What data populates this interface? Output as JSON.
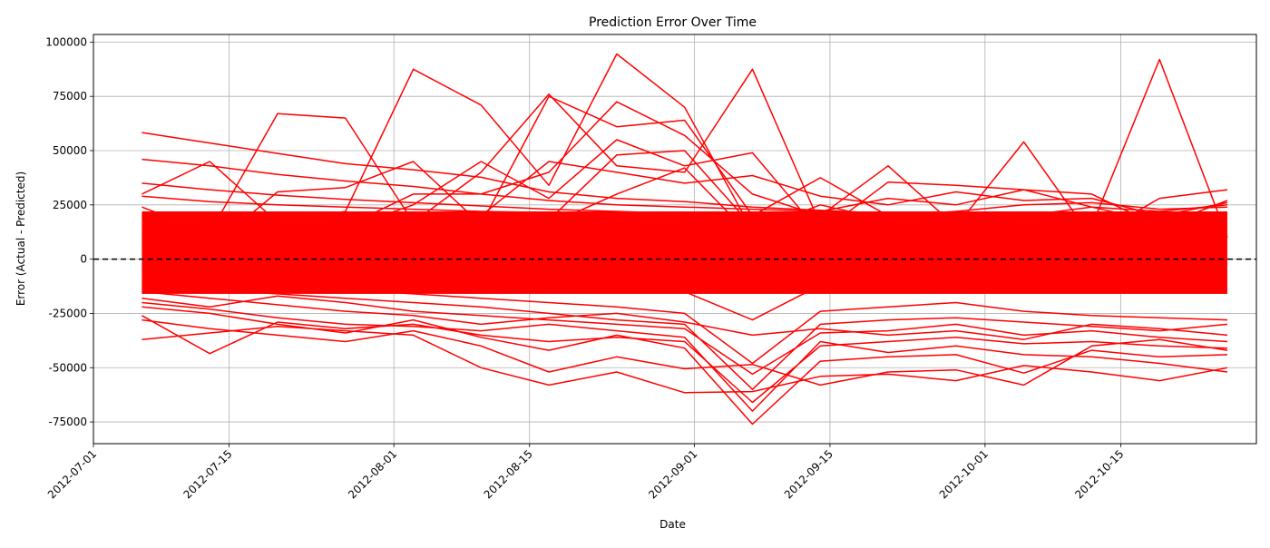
{
  "chart_data": {
    "type": "line",
    "title": "Prediction Error Over Time",
    "xlabel": "Date",
    "ylabel": "Error (Actual - Predicted)",
    "xlim": [
      "2012-07-01",
      "2012-10-29"
    ],
    "ylim": [
      -85000,
      103500
    ],
    "x_ticks": [
      "2012-07-01",
      "2012-07-15",
      "2012-08-01",
      "2012-08-15",
      "2012-09-01",
      "2012-09-15",
      "2012-10-01",
      "2012-10-15"
    ],
    "y_ticks": [
      -75000,
      -50000,
      -25000,
      0,
      25000,
      50000,
      75000,
      100000
    ],
    "grid": true,
    "line_color": "#ff0000",
    "reference_line": {
      "y": 0,
      "style": "dashed",
      "color": "#000000"
    },
    "dates": [
      "2012-07-06",
      "2012-07-13",
      "2012-07-20",
      "2012-07-27",
      "2012-08-03",
      "2012-08-10",
      "2012-08-17",
      "2012-08-24",
      "2012-08-31",
      "2012-09-07",
      "2012-09-14",
      "2012-09-21",
      "2012-09-28",
      "2012-10-05",
      "2012-10-12",
      "2012-10-19",
      "2012-10-26"
    ],
    "series_count_note": "",
    "series": [
      {
        "values": [
          58300,
          53500,
          48700,
          44000,
          41200,
          37700,
          31000,
          28000,
          26500,
          24000,
          22500,
          21000,
          20000,
          19000,
          18000,
          17000,
          16000
        ]
      },
      {
        "values": [
          46000,
          43000,
          39000,
          36000,
          33500,
          30000,
          27000,
          25000,
          24000,
          23000,
          22000,
          21500,
          21000,
          20500,
          20000,
          19800,
          19500
        ]
      },
      {
        "values": [
          35000,
          32000,
          29500,
          27500,
          26000,
          24500,
          23000,
          22000,
          21000,
          20000,
          19000,
          18500,
          18000,
          17500,
          17000,
          16500,
          16000
        ]
      },
      {
        "values": [
          29000,
          26500,
          25000,
          24000,
          23000,
          22000,
          21500,
          21000,
          20500,
          20000,
          19500,
          19000,
          18500,
          18000,
          17500,
          17000,
          16500
        ]
      },
      {
        "values": [
          30000,
          45000,
          17000,
          22000,
          87500,
          71000,
          34000,
          94500,
          70000,
          13000,
          25000,
          18000,
          22000,
          20000,
          24000,
          17000,
          21000
        ]
      },
      {
        "values": [
          24000,
          12000,
          67000,
          65000,
          17000,
          40000,
          76000,
          43000,
          40000,
          87500,
          16000,
          12000,
          15000,
          18000,
          17000,
          13000,
          16000
        ]
      },
      {
        "values": [
          15000,
          5000,
          31000,
          33000,
          45000,
          16000,
          75000,
          61000,
          64000,
          20000,
          37500,
          20000,
          15000,
          10000,
          15000,
          92000,
          10000
        ]
      },
      {
        "values": [
          20000,
          10000,
          15000,
          15000,
          30000,
          30000,
          40000,
          72500,
          57000,
          30000,
          20000,
          43000,
          15000,
          54000,
          10000,
          28000,
          32000
        ]
      },
      {
        "values": [
          10000,
          8000,
          12000,
          14000,
          25000,
          45000,
          28000,
          55000,
          43000,
          49000,
          12000,
          35500,
          34000,
          32000,
          30000,
          15000,
          27000
        ]
      },
      {
        "values": [
          12000,
          6000,
          9000,
          10000,
          15000,
          20000,
          45000,
          40000,
          35000,
          38500,
          29000,
          25000,
          31000,
          27000,
          28000,
          20000,
          26000
        ]
      },
      {
        "values": [
          8000,
          5000,
          7000,
          9000,
          20000,
          14000,
          18000,
          48000,
          50000,
          15000,
          22000,
          28000,
          25000,
          32000,
          24000,
          22000,
          25000
        ]
      },
      {
        "values": [
          5000,
          3000,
          4000,
          6000,
          10000,
          12000,
          16000,
          30000,
          42000,
          10000,
          18000,
          20000,
          22000,
          25000,
          26000,
          23000,
          24000
        ]
      },
      {
        "values": [
          -5000,
          -3000,
          -4000,
          -6000,
          -8000,
          -10000,
          -12000,
          -14000,
          -15000,
          -28000,
          -12000,
          -10000,
          -9000,
          -10000,
          -12000,
          -13000,
          -14000
        ]
      },
      {
        "values": [
          -12000,
          -9000,
          -11000,
          -14000,
          -16000,
          -18000,
          -20000,
          -22000,
          -25000,
          -48000,
          -24000,
          -22000,
          -20000,
          -24000,
          -26000,
          -27000,
          -28000
        ]
      },
      {
        "values": [
          -18000,
          -22000,
          -17000,
          -20000,
          -24000,
          -26000,
          -28000,
          -30000,
          -32000,
          -53000,
          -34000,
          -33000,
          -30000,
          -35000,
          -33000,
          -36000,
          -38000
        ]
      },
      {
        "values": [
          -26000,
          -43500,
          -29000,
          -32000,
          -30000,
          -35000,
          -38000,
          -36000,
          -38000,
          -66000,
          -40000,
          -38000,
          -36000,
          -39000,
          -38000,
          -40000,
          -41000
        ]
      },
      {
        "values": [
          -37000,
          -34000,
          -31000,
          -33000,
          -35000,
          -50000,
          -58000,
          -52000,
          -61500,
          -61000,
          -54000,
          -53000,
          -56000,
          -49000,
          -52000,
          -56000,
          -50000
        ]
      },
      {
        "values": [
          -28000,
          -32000,
          -35000,
          -38000,
          -33000,
          -40000,
          -52000,
          -45000,
          -50500,
          -48500,
          -58000,
          -52000,
          -51000,
          -58000,
          -40000,
          -37000,
          -42000
        ]
      },
      {
        "values": [
          -22000,
          -25000,
          -30000,
          -34000,
          -28000,
          -36000,
          -42000,
          -35000,
          -41000,
          -76000,
          -47000,
          -45000,
          -44000,
          -52500,
          -42000,
          -45000,
          -44000
        ]
      },
      {
        "values": [
          -20000,
          -23000,
          -27000,
          -30000,
          -31000,
          -33000,
          -30000,
          -33000,
          -36000,
          -70000,
          -38000,
          -43000,
          -40000,
          -44000,
          -45000,
          -48000,
          -52000
        ]
      },
      {
        "values": [
          -15000,
          -18000,
          -21000,
          -24000,
          -26000,
          -30000,
          -27000,
          -25000,
          -29000,
          -35000,
          -32000,
          -35000,
          -33000,
          -37000,
          -30000,
          -32000,
          -35000
        ]
      },
      {
        "values": [
          -10000,
          -14000,
          -16000,
          -18000,
          -20000,
          -22000,
          -25000,
          -28000,
          -30000,
          -60000,
          -30000,
          -28000,
          -27000,
          -29000,
          -31000,
          -33000,
          -30000
        ]
      }
    ]
  }
}
